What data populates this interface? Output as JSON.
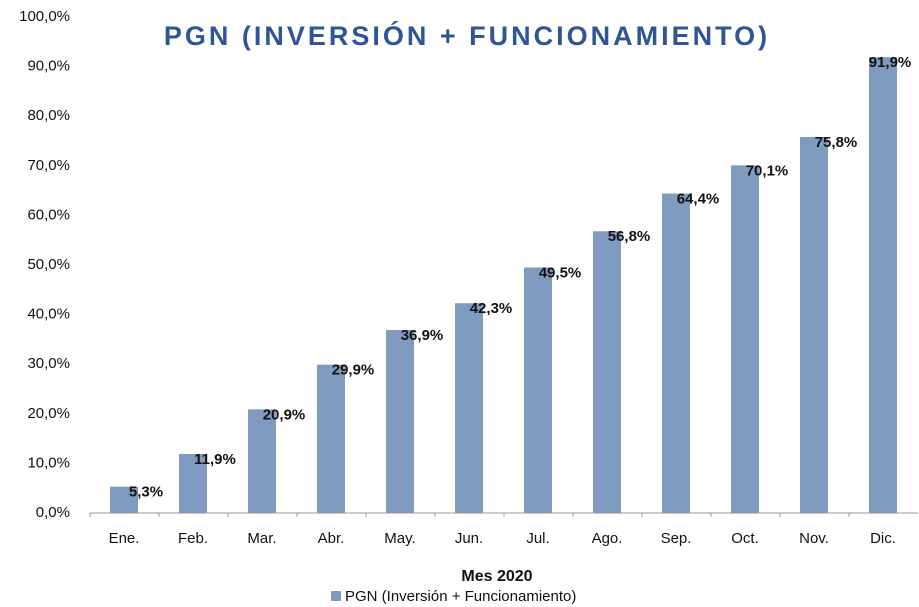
{
  "chart_data": {
    "type": "bar",
    "title": "PGN (INVERSIÓN + FUNCIONAMIENTO)",
    "x_label": "Mes 2020",
    "categories": [
      "Ene.",
      "Feb.",
      "Mar.",
      "Abr.",
      "May.",
      "Jun.",
      "Jul.",
      "Ago.",
      "Sep.",
      "Oct.",
      "Nov.",
      "Dic."
    ],
    "series": [
      {
        "name": "PGN (Inversión + Funcionamiento)",
        "color": "#7f9bbf",
        "values": [
          5.3,
          11.9,
          20.9,
          29.9,
          36.9,
          42.3,
          49.5,
          56.8,
          64.4,
          70.1,
          75.8,
          91.9
        ],
        "value_labels": [
          "5,3%",
          "11,9%",
          "20,9%",
          "29,9%",
          "36,9%",
          "42,3%",
          "49,5%",
          "56,8%",
          "64,4%",
          "70,1%",
          "75,8%",
          "91,9%"
        ]
      }
    ],
    "ylim": [
      0,
      100
    ],
    "yticks": [
      {
        "value": 0,
        "label": "0,0%"
      },
      {
        "value": 10,
        "label": "10,0%"
      },
      {
        "value": 20,
        "label": "20,0%"
      },
      {
        "value": 30,
        "label": "30,0%"
      },
      {
        "value": 40,
        "label": "40,0%"
      },
      {
        "value": 50,
        "label": "50,0%"
      },
      {
        "value": 60,
        "label": "60,0%"
      },
      {
        "value": 70,
        "label": "70,0%"
      },
      {
        "value": 80,
        "label": "80,0%"
      },
      {
        "value": 90,
        "label": "90,0%"
      },
      {
        "value": 100,
        "label": "100,0%"
      }
    ],
    "grid": false,
    "legend": "bottom"
  }
}
